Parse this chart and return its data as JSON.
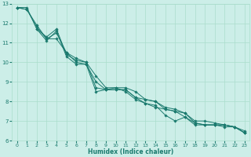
{
  "title": "",
  "xlabel": "Humidex (Indice chaleur)",
  "ylabel": "",
  "background_color": "#cceee8",
  "grid_color": "#aaddcc",
  "line_color": "#1a7a6e",
  "xlim": [
    -0.5,
    23.5
  ],
  "ylim": [
    6,
    13
  ],
  "xticks": [
    0,
    1,
    2,
    3,
    4,
    5,
    6,
    7,
    8,
    9,
    10,
    11,
    12,
    13,
    14,
    15,
    16,
    17,
    18,
    19,
    20,
    21,
    22,
    23
  ],
  "yticks": [
    6,
    7,
    8,
    9,
    10,
    11,
    12,
    13
  ],
  "series": [
    {
      "x": [
        0,
        1,
        2,
        3,
        4,
        5,
        6,
        7,
        8,
        9,
        10,
        11,
        12,
        13,
        14,
        15,
        16,
        17,
        18,
        19,
        20,
        21,
        22,
        23
      ],
      "y": [
        12.8,
        12.8,
        11.7,
        11.3,
        11.7,
        10.4,
        10.1,
        10.0,
        8.7,
        8.6,
        8.6,
        8.6,
        8.2,
        8.1,
        8.0,
        7.7,
        7.6,
        7.4,
        6.9,
        6.8,
        6.8,
        6.8,
        6.7,
        6.5
      ]
    },
    {
      "x": [
        0,
        1,
        2,
        3,
        4,
        5,
        6,
        7,
        8,
        9,
        10,
        11,
        12,
        13,
        14,
        15,
        16,
        17,
        18,
        19,
        20,
        21,
        22,
        23
      ],
      "y": [
        12.8,
        12.7,
        11.9,
        11.2,
        11.2,
        10.5,
        10.2,
        10.0,
        9.3,
        8.7,
        8.7,
        8.5,
        8.1,
        7.9,
        7.7,
        7.6,
        7.5,
        7.4,
        7.0,
        7.0,
        6.9,
        6.8,
        6.7,
        6.4
      ]
    },
    {
      "x": [
        2,
        3,
        4,
        5,
        6,
        7,
        8,
        9,
        10,
        11,
        12,
        13,
        14,
        15,
        16,
        17,
        18,
        19,
        20,
        21,
        22,
        23
      ],
      "y": [
        11.7,
        11.1,
        11.6,
        10.3,
        9.9,
        9.9,
        8.5,
        8.6,
        8.7,
        8.7,
        8.5,
        8.1,
        8.0,
        7.6,
        7.5,
        7.2,
        6.9,
        6.8,
        6.8,
        6.8,
        6.7,
        6.4
      ]
    },
    {
      "x": [
        0,
        1,
        2,
        3,
        4,
        5,
        6,
        7,
        8,
        9,
        10,
        11,
        12,
        13,
        14,
        15,
        16,
        17,
        18,
        19,
        20,
        21,
        22,
        23
      ],
      "y": [
        12.8,
        12.7,
        11.8,
        11.2,
        11.5,
        10.5,
        10.0,
        9.9,
        9.0,
        8.6,
        8.6,
        8.6,
        8.2,
        7.9,
        7.8,
        7.3,
        7.0,
        7.2,
        6.8,
        6.8,
        6.8,
        6.7,
        6.7,
        6.4
      ]
    }
  ]
}
